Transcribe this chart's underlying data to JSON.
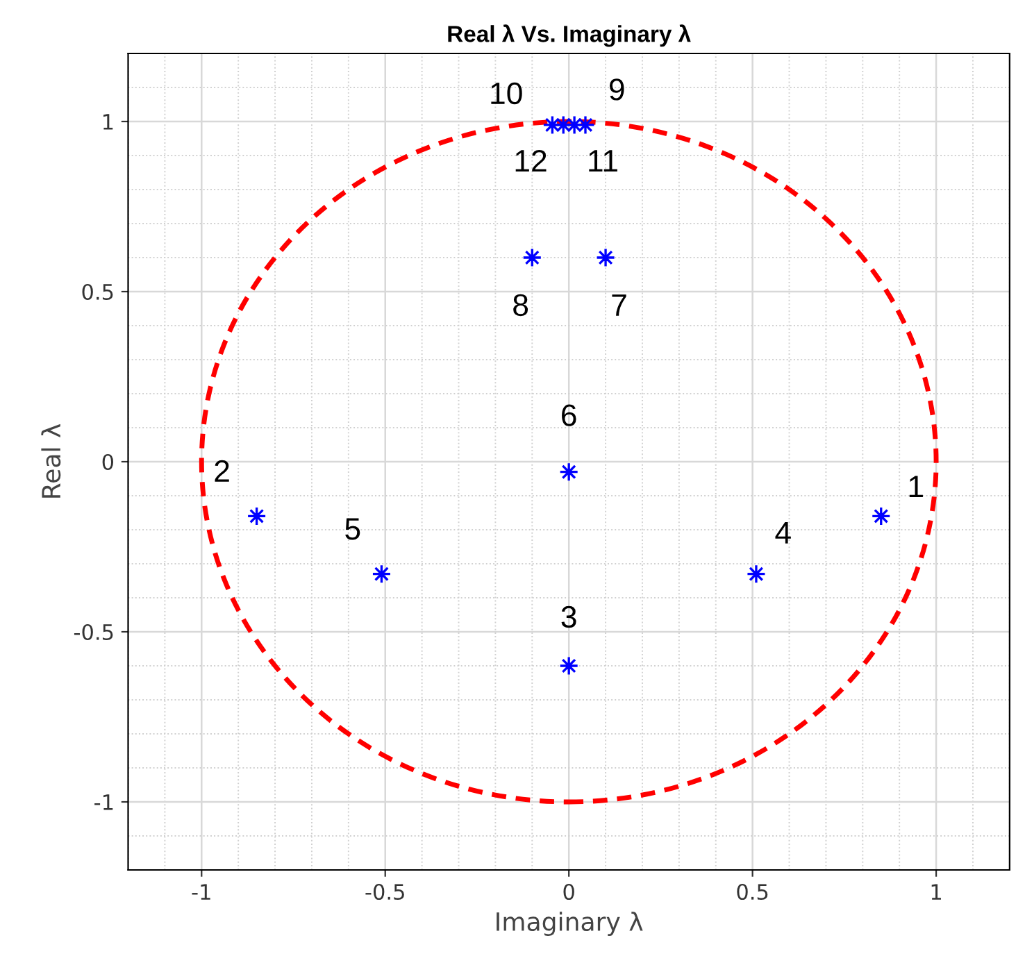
{
  "chart_data": {
    "type": "scatter",
    "title": "Real λ Vs. Imaginary λ",
    "xlabel": "Imaginary λ",
    "ylabel": "Real λ",
    "xlim": [
      -1.2,
      1.2
    ],
    "ylim": [
      -1.2,
      1.2
    ],
    "xticks": [
      -1,
      -0.5,
      0,
      0.5,
      1
    ],
    "yticks": [
      -1,
      -0.5,
      0,
      0.5,
      1
    ],
    "grid": true,
    "legend": false,
    "series": [
      {
        "color": "#0000ff",
        "marker": "star",
        "x": [
          0.85,
          -0.85,
          0,
          0.51,
          -0.51,
          0,
          0.1,
          -0.1,
          0.015,
          -0.045,
          0.045,
          -0.015
        ],
        "values": [
          -0.16,
          -0.16,
          -0.6,
          -0.33,
          -0.33,
          -0.03,
          0.6,
          0.6,
          0.99,
          0.99,
          0.99,
          0.99
        ]
      }
    ],
    "annotations": [
      {
        "text": "1",
        "x": 0.85,
        "y": -0.16
      },
      {
        "text": "2",
        "x": -0.85,
        "y": -0.16
      },
      {
        "text": "3",
        "x": 0,
        "y": -0.6
      },
      {
        "text": "4",
        "x": 0.51,
        "y": -0.33
      },
      {
        "text": "5",
        "x": -0.51,
        "y": -0.33
      },
      {
        "text": "6",
        "x": 0,
        "y": -0.03
      },
      {
        "text": "7",
        "x": 0.1,
        "y": 0.6
      },
      {
        "text": "8",
        "x": -0.1,
        "y": 0.6
      },
      {
        "text": "9",
        "x": 0.015,
        "y": 0.99
      },
      {
        "text": "10",
        "x": -0.045,
        "y": 0.99
      },
      {
        "text": "11",
        "x": 0.045,
        "y": 0.99
      },
      {
        "text": "12",
        "x": -0.015,
        "y": 0.99
      }
    ]
  }
}
